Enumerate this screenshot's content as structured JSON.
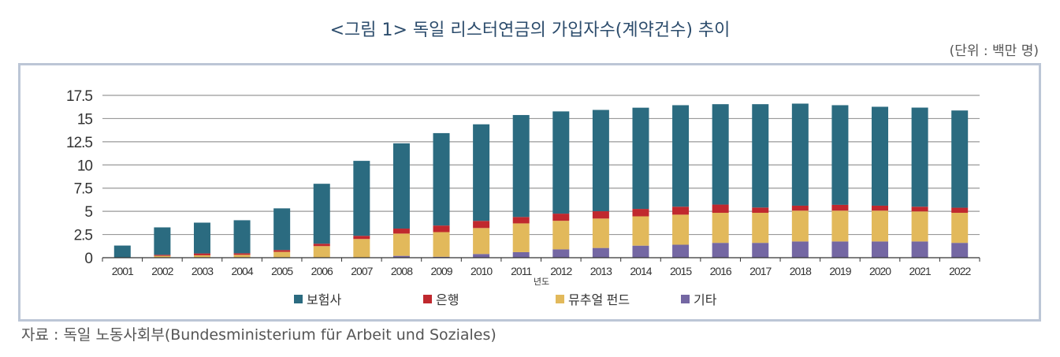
{
  "title": "<그림 1> 독일 리스터연금의 가입자수(계약건수) 추이",
  "unit": "(단위 : 백만 명)",
  "caption": "자료 : 독일 노동사회부(Bundesministerium für Arbeit und Soziales)",
  "chart_data": {
    "type": "bar",
    "stacked": true,
    "title": "<그림 1> 독일 리스터연금의 가입자수(계약건수) 추이",
    "xlabel": "년도",
    "ylabel": "",
    "ylim": [
      0,
      17.5
    ],
    "yticks": [
      "0",
      "2.5",
      "5",
      "7.5",
      "10",
      "12.5",
      "15",
      "17.5"
    ],
    "ytick_values": [
      0,
      2.5,
      5,
      7.5,
      10,
      12.5,
      15,
      17.5
    ],
    "grid": true,
    "legend": "bottom",
    "categories": [
      "2001",
      "2002",
      "2003",
      "2004",
      "2005",
      "2006",
      "2007",
      "2008",
      "2009",
      "2010",
      "2011",
      "2012",
      "2013",
      "2014",
      "2015",
      "2016",
      "2017",
      "2018",
      "2019",
      "2020",
      "2021",
      "2022"
    ],
    "series": [
      {
        "name": "기타",
        "color": "#7467a3",
        "values": [
          0,
          0,
          0,
          0,
          0,
          0,
          0,
          0.2,
          0.1,
          0.4,
          0.6,
          0.9,
          1.05,
          1.3,
          1.4,
          1.6,
          1.6,
          1.75,
          1.75,
          1.75,
          1.75,
          1.6
        ]
      },
      {
        "name": "뮤추얼 펀드",
        "color": "#e2b95b",
        "values": [
          0,
          0.2,
          0.26,
          0.31,
          0.63,
          1.25,
          2.02,
          2.4,
          2.66,
          2.8,
          3.1,
          3.08,
          3.17,
          3.16,
          3.24,
          3.24,
          3.24,
          3.32,
          3.32,
          3.32,
          3.24,
          3.24
        ]
      },
      {
        "name": "은행",
        "color": "#c0282e",
        "values": [
          0,
          0.11,
          0.2,
          0.17,
          0.2,
          0.26,
          0.34,
          0.54,
          0.71,
          0.77,
          0.69,
          0.77,
          0.79,
          0.8,
          0.86,
          0.89,
          0.57,
          0.54,
          0.63,
          0.54,
          0.51,
          0.55
        ]
      },
      {
        "name": "보험사",
        "color": "#2b6b80",
        "values": [
          1.31,
          2.96,
          3.32,
          3.56,
          4.49,
          6.46,
          8.08,
          9.19,
          9.96,
          10.41,
          10.99,
          11.02,
          10.92,
          10.91,
          10.94,
          10.82,
          11.14,
          11.0,
          10.74,
          10.66,
          10.68,
          10.48
        ]
      }
    ],
    "legend_order": [
      "보험사",
      "은행",
      "뮤추얼 펀드",
      "기타"
    ]
  }
}
